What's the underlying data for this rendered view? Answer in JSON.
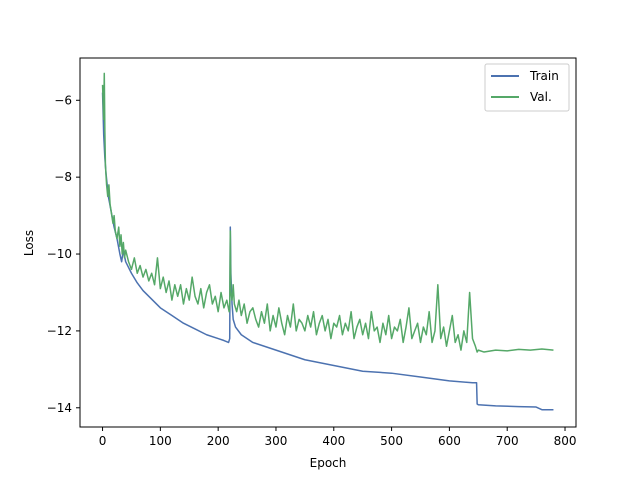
{
  "chart_data": {
    "type": "line",
    "title": "",
    "xlabel": "Epoch",
    "ylabel": "Loss",
    "xlim": [
      -39,
      819
    ],
    "ylim": [
      -14.5,
      -4.9
    ],
    "xticks": [
      0,
      100,
      200,
      300,
      400,
      500,
      600,
      700,
      800
    ],
    "xtick_labels": [
      "0",
      "100",
      "200",
      "300",
      "400",
      "500",
      "600",
      "700",
      "800"
    ],
    "yticks": [
      -14,
      -12,
      -10,
      -8,
      -6
    ],
    "ytick_labels": [
      "−14",
      "−12",
      "−10",
      "−8",
      "−6"
    ],
    "grid": false,
    "legend_position": "top-right",
    "series": [
      {
        "name": "Train",
        "color": "#4c72b0",
        "x": [
          0,
          2,
          4,
          6,
          8,
          10,
          15,
          20,
          25,
          30,
          33,
          36,
          40,
          50,
          60,
          70,
          80,
          100,
          120,
          140,
          160,
          180,
          200,
          210,
          218,
          220,
          221,
          222,
          224,
          226,
          230,
          240,
          260,
          300,
          350,
          400,
          450,
          500,
          550,
          600,
          640,
          647,
          648,
          650,
          680,
          720,
          750,
          760,
          780
        ],
        "y": [
          -5.8,
          -6.9,
          -7.5,
          -7.9,
          -8.2,
          -8.5,
          -8.9,
          -9.3,
          -9.6,
          -10.0,
          -10.2,
          -9.9,
          -10.2,
          -10.5,
          -10.75,
          -10.95,
          -11.1,
          -11.4,
          -11.6,
          -11.8,
          -11.95,
          -12.1,
          -12.2,
          -12.25,
          -12.3,
          -12.2,
          -9.3,
          -10.5,
          -11.3,
          -11.7,
          -11.9,
          -12.1,
          -12.3,
          -12.5,
          -12.75,
          -12.9,
          -13.05,
          -13.1,
          -13.2,
          -13.3,
          -13.35,
          -13.35,
          -13.9,
          -13.92,
          -13.95,
          -13.97,
          -13.98,
          -14.05,
          -14.05
        ]
      },
      {
        "name": "Val.",
        "color": "#55a868",
        "x": [
          0,
          2,
          3,
          4,
          5,
          7,
          9,
          11,
          13,
          15,
          18,
          20,
          22,
          25,
          28,
          30,
          32,
          34,
          36,
          38,
          40,
          45,
          50,
          55,
          60,
          65,
          70,
          75,
          80,
          85,
          90,
          95,
          100,
          105,
          110,
          115,
          120,
          125,
          130,
          135,
          140,
          145,
          150,
          155,
          160,
          165,
          170,
          175,
          180,
          185,
          190,
          195,
          200,
          205,
          210,
          215,
          219,
          220,
          221,
          222,
          224,
          226,
          228,
          232,
          236,
          240,
          245,
          250,
          255,
          260,
          265,
          270,
          275,
          280,
          285,
          290,
          295,
          300,
          305,
          310,
          315,
          320,
          325,
          330,
          335,
          340,
          345,
          350,
          355,
          360,
          365,
          370,
          375,
          380,
          385,
          390,
          395,
          400,
          405,
          410,
          415,
          420,
          425,
          430,
          435,
          440,
          445,
          450,
          455,
          460,
          465,
          470,
          475,
          480,
          485,
          490,
          495,
          500,
          505,
          510,
          515,
          520,
          525,
          530,
          535,
          540,
          545,
          550,
          555,
          560,
          565,
          570,
          575,
          580,
          585,
          590,
          595,
          600,
          605,
          610,
          615,
          620,
          625,
          630,
          635,
          640,
          645,
          648,
          650,
          660,
          680,
          700,
          720,
          740,
          760,
          780
        ],
        "y": [
          -5.6,
          -6.5,
          -5.3,
          -6.8,
          -7.7,
          -8.2,
          -8.5,
          -8.2,
          -8.7,
          -8.9,
          -9.2,
          -9.0,
          -9.4,
          -9.6,
          -9.3,
          -9.8,
          -9.5,
          -10.0,
          -9.7,
          -10.1,
          -9.9,
          -10.2,
          -10.4,
          -10.1,
          -10.5,
          -10.3,
          -10.6,
          -10.4,
          -10.7,
          -10.5,
          -10.8,
          -10.1,
          -10.9,
          -10.6,
          -11.0,
          -10.7,
          -11.2,
          -10.8,
          -11.1,
          -10.8,
          -11.3,
          -10.9,
          -11.2,
          -10.6,
          -11.1,
          -11.3,
          -10.9,
          -11.4,
          -11.0,
          -10.8,
          -11.3,
          -11.1,
          -11.5,
          -11.0,
          -11.4,
          -11.2,
          -11.5,
          -11.3,
          -9.4,
          -11.0,
          -11.2,
          -10.8,
          -11.3,
          -11.5,
          -11.2,
          -11.6,
          -11.3,
          -11.8,
          -11.5,
          -11.4,
          -11.7,
          -11.9,
          -11.5,
          -11.8,
          -11.3,
          -12.0,
          -11.6,
          -11.9,
          -11.4,
          -11.8,
          -12.1,
          -11.6,
          -11.9,
          -11.3,
          -12.0,
          -11.7,
          -11.8,
          -12.0,
          -11.6,
          -11.9,
          -11.5,
          -12.1,
          -11.8,
          -11.6,
          -12.0,
          -11.7,
          -12.2,
          -11.8,
          -11.9,
          -11.6,
          -12.1,
          -11.8,
          -12.0,
          -11.5,
          -12.2,
          -11.9,
          -11.7,
          -12.1,
          -11.8,
          -12.2,
          -11.5,
          -12.0,
          -11.9,
          -12.3,
          -11.8,
          -12.1,
          -11.6,
          -12.2,
          -11.9,
          -12.0,
          -11.7,
          -12.3,
          -11.9,
          -11.4,
          -12.2,
          -12.0,
          -11.8,
          -12.3,
          -11.9,
          -12.1,
          -11.5,
          -12.3,
          -12.0,
          -10.8,
          -12.2,
          -11.9,
          -12.4,
          -12.0,
          -11.6,
          -12.3,
          -12.1,
          -12.5,
          -12.0,
          -12.3,
          -11.0,
          -12.2,
          -12.4,
          -12.55,
          -12.5,
          -12.55,
          -12.5,
          -12.52,
          -12.48,
          -12.5,
          -12.47,
          -12.5
        ]
      }
    ]
  }
}
